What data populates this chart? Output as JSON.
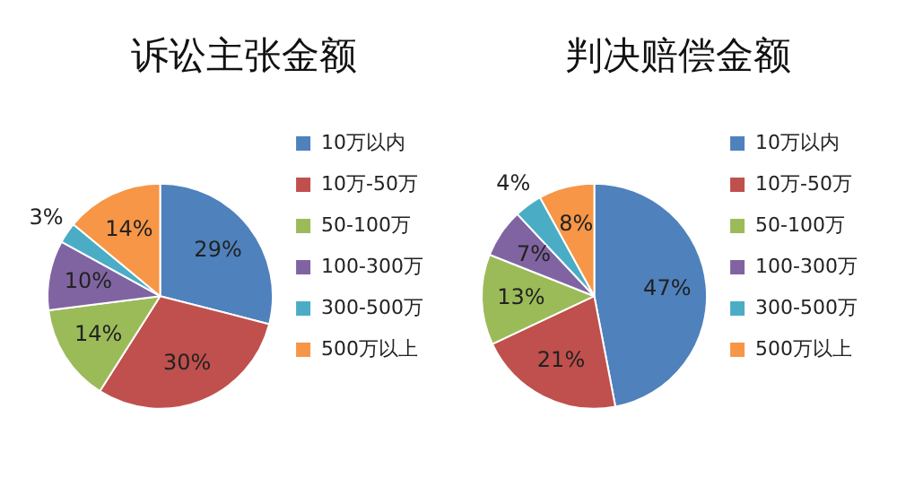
{
  "chart_data": [
    {
      "type": "pie",
      "title": "诉讼主张金额",
      "categories": [
        "10万以内",
        "10万-50万",
        "50-100万",
        "100-300万",
        "300-500万",
        "500万以上"
      ],
      "values": [
        29,
        30,
        14,
        10,
        3,
        14
      ],
      "value_labels": [
        "29%",
        "30%",
        "14%",
        "10%",
        "3%",
        "14%"
      ],
      "colors": [
        "#4f81bd",
        "#c0504d",
        "#9bbb59",
        "#8064a2",
        "#4bacc6",
        "#f79646"
      ],
      "legend": "right"
    },
    {
      "type": "pie",
      "title": "判决赔偿金额",
      "categories": [
        "10万以内",
        "10万-50万",
        "50-100万",
        "100-300万",
        "300-500万",
        "500万以上"
      ],
      "values": [
        47,
        21,
        13,
        7,
        4,
        8
      ],
      "value_labels": [
        "47%",
        "21%",
        "13%",
        "7%",
        "4%",
        "8%"
      ],
      "colors": [
        "#4f81bd",
        "#c0504d",
        "#9bbb59",
        "#8064a2",
        "#4bacc6",
        "#f79646"
      ],
      "legend": "right"
    }
  ]
}
